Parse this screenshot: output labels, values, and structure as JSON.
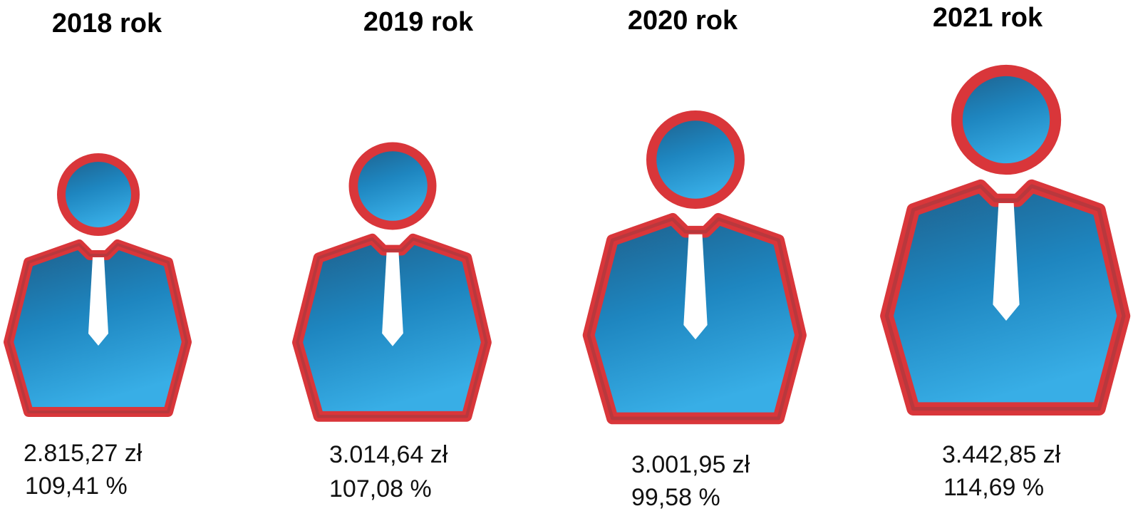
{
  "items": [
    {
      "year": "2018 rok",
      "amount": "2.815,27 zł",
      "percent": "109,41 %"
    },
    {
      "year": "2019 rok",
      "amount": "3.014,64 zł",
      "percent": "107,08 %"
    },
    {
      "year": "2020 rok",
      "amount": "3.001,95 zł",
      "percent": "99,58 %"
    },
    {
      "year": "2021 rok",
      "amount": "3.442,85 zł",
      "percent": "114,69 %"
    }
  ]
}
